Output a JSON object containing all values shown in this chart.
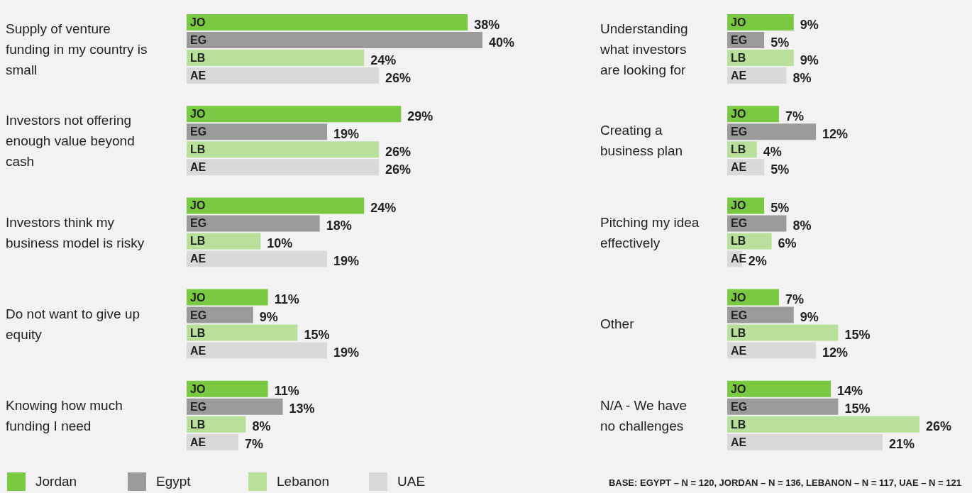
{
  "chart_data": [
    {
      "type": "bar",
      "orientation": "horizontal",
      "legend": "bottom",
      "categories": [
        "Supply of venture funding in my country is small",
        "Investors not offering enough value beyond cash",
        "Investors think my business model is risky",
        "Do not want to give up equity",
        "Knowing how much funding I need"
      ],
      "series": [
        {
          "name": "Jordan",
          "color": "#7ac943",
          "values": [
            38,
            29,
            24,
            11,
            11
          ],
          "value_labels": [
            "38%",
            "29%",
            "24%",
            "11%",
            "11%"
          ]
        },
        {
          "name": "Egypt",
          "color": "#9b9b9b",
          "values": [
            40,
            19,
            18,
            9,
            13
          ],
          "value_labels": [
            "40%",
            "19%",
            "18%",
            "9%",
            "13%"
          ]
        },
        {
          "name": "Lebanon",
          "color": "#b8e09a",
          "values": [
            24,
            26,
            10,
            15,
            8
          ],
          "value_labels": [
            "24%",
            "26%",
            "10%",
            "15%",
            "8%"
          ]
        },
        {
          "name": "UAE",
          "color": "#d9d9d9",
          "values": [
            26,
            26,
            19,
            19,
            7
          ],
          "value_labels": [
            "26%",
            "26%",
            "19%",
            "19%",
            "7%"
          ]
        }
      ],
      "annotations": [
        {
          "text": "JO",
          "y": "Supply of venture funding in my country is small"
        },
        {
          "text": "EG",
          "y": "Supply of venture funding in my country is small"
        },
        {
          "text": "LB",
          "y": "Supply of venture funding in my country is small"
        },
        {
          "text": "AE",
          "y": "Supply of venture funding in my country is small"
        },
        {
          "text": "JO",
          "y": "Investors not offering enough value beyond cash"
        },
        {
          "text": "EG",
          "y": "Investors not offering enough value beyond cash"
        },
        {
          "text": "LB",
          "y": "Investors not offering enough value beyond cash"
        },
        {
          "text": "AE",
          "y": "Investors not offering enough value beyond cash"
        },
        {
          "text": "JO",
          "y": "Investors think my business model is risky"
        },
        {
          "text": "EG",
          "y": "Investors think my business model is risky"
        },
        {
          "text": "LB",
          "y": "Investors think my business model is risky"
        },
        {
          "text": "AE",
          "y": "Investors think my business model is risky"
        },
        {
          "text": "JO",
          "y": "Do not want to give up equity"
        },
        {
          "text": "EG",
          "y": "Do not want to give up equity"
        },
        {
          "text": "LB",
          "y": "Do not want to give up equity"
        },
        {
          "text": "AE",
          "y": "Do not want to give up equity"
        },
        {
          "text": "JO",
          "y": "Knowing how much funding I need"
        },
        {
          "text": "EG",
          "y": "Knowing how much funding I need"
        },
        {
          "text": "LB",
          "y": "Knowing how much funding I need"
        },
        {
          "text": "AE",
          "y": "Knowing how much funding I need"
        }
      ]
    },
    {
      "type": "bar",
      "orientation": "horizontal",
      "legend": false,
      "categories": [
        "Understanding what investors are looking for",
        "Creating a business plan",
        "Pitching my idea effectively",
        "Other",
        "N/A - We have no challenges"
      ],
      "series": [
        {
          "color": "#7ac943",
          "values": [
            9,
            7,
            5,
            7,
            14
          ],
          "value_labels": [
            "9%",
            "7%",
            "5%",
            "7%",
            "14%"
          ]
        },
        {
          "color": "#9b9b9b",
          "values": [
            5,
            12,
            8,
            9,
            15
          ],
          "value_labels": [
            "5%",
            "12%",
            "8%",
            "9%",
            "15%"
          ]
        },
        {
          "color": "#b8e09a",
          "values": [
            9,
            4,
            6,
            15,
            26
          ],
          "value_labels": [
            "9%",
            "4%",
            "6%",
            "15%",
            "26%"
          ]
        },
        {
          "color": "#d9d9d9",
          "values": [
            8,
            5,
            2,
            12,
            21
          ],
          "value_labels": [
            "8%",
            "5%",
            "2%",
            "12%",
            "21%"
          ]
        }
      ],
      "annotations": [
        "BASE: EGYPT – N = 120, JORDAN – N = 136, LEBANON – N = 117, UAE – N = 121",
        {
          "text": "JO",
          "y": "Understanding what investors are looking for"
        },
        {
          "text": "EG",
          "y": "Understanding what investors are looking for"
        },
        {
          "text": "LB",
          "y": "Understanding what investors are looking for"
        },
        {
          "text": "AE",
          "y": "Understanding what investors are looking for"
        },
        {
          "text": "JO",
          "y": "Creating a business plan"
        },
        {
          "text": "EG",
          "y": "Creating a business plan"
        },
        {
          "text": "LB",
          "y": "Creating a business plan"
        },
        {
          "text": "AE",
          "y": "Creating a business plan"
        },
        {
          "text": "JO",
          "y": "Pitching my idea effectively"
        },
        {
          "text": "EG",
          "y": "Pitching my idea effectively"
        },
        {
          "text": "LB",
          "y": "Pitching my idea effectively"
        },
        {
          "text": "AE",
          "y": "Pitching my idea effectively"
        },
        {
          "text": "JO",
          "y": "Other"
        },
        {
          "text": "EG",
          "y": "Other"
        },
        {
          "text": "LB",
          "y": "Other"
        },
        {
          "text": "AE",
          "y": "Other"
        },
        {
          "text": "JO",
          "y": "N/A - We have no challenges"
        },
        {
          "text": "EG",
          "y": "N/A - We have no challenges"
        },
        {
          "text": "LB",
          "y": "N/A - We have no challenges"
        },
        {
          "text": "AE",
          "y": "N/A - We have no challenges"
        }
      ]
    }
  ]
}
